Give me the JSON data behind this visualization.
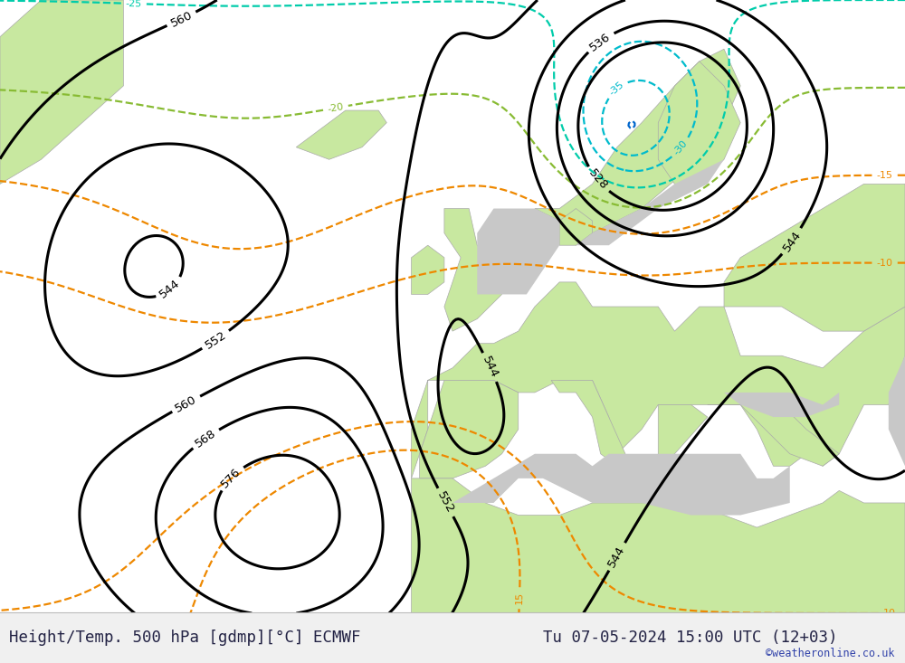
{
  "title_left": "Height/Temp. 500 hPa [gdmp][°C] ECMWF",
  "title_right": "Tu 07-05-2024 15:00 UTC (12+03)",
  "watermark": "©weatheronline.co.uk",
  "bg_color": "#ffffff",
  "land_green": "#c8e8a0",
  "sea_gray": "#c8c8c8",
  "bottom_bg": "#f0f0f0",
  "geo_color": "#000000",
  "temp_blue_color": "#0066cc",
  "temp_cyan_color": "#00bbcc",
  "temp_teal_color": "#00ccaa",
  "temp_green_color": "#88bb33",
  "temp_warm_color": "#ee8800",
  "coast_color": "#aaaaaa",
  "title_color": "#222244",
  "watermark_color": "#3344aa",
  "geo_linewidth": 2.2,
  "temp_linewidth": 1.6,
  "title_fontsize": 12.5,
  "watermark_fontsize": 8.5
}
